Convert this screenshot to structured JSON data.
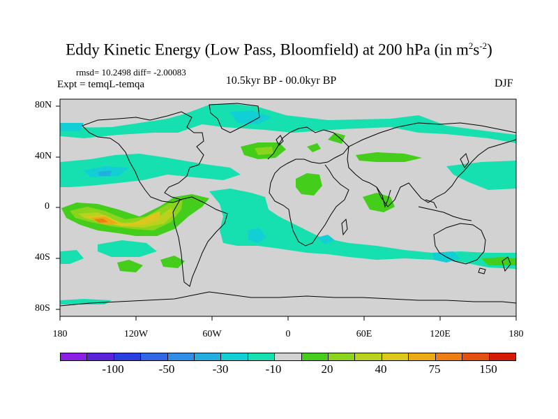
{
  "title": {
    "main": "Eddy Kinetic Energy (Low Pass, Bloomfield) at 200 hPa (in m",
    "sup1": "2",
    "mid": "s",
    "sup2": "-2",
    "end": ")"
  },
  "stats": "rmsd= 10.2498 diff= -2.00083",
  "experiment": "Expt = temqL-temqa",
  "period": "10.5kyr BP - 00.0kyr BP",
  "season": "DJF",
  "lat_labels": [
    "80N",
    "40N",
    "0",
    "40S",
    "80S"
  ],
  "lon_labels": [
    "180",
    "120W",
    "60W",
    "0",
    "60E",
    "120E",
    "180"
  ],
  "colorbar": {
    "colors": [
      "#8c1fe6",
      "#5a23d9",
      "#2a3ee0",
      "#2f66e6",
      "#2f8fe8",
      "#22afe0",
      "#12cfd6",
      "#16e0b0",
      "#d2d2d2",
      "#44cd1a",
      "#8ad41e",
      "#b8d21e",
      "#dcc81c",
      "#eaaa16",
      "#ee7e14",
      "#e35010",
      "#d51a08"
    ],
    "labels": [
      "-100",
      "-50",
      "-30",
      "-10",
      "20",
      "40",
      "75",
      "150"
    ]
  },
  "colors": {
    "land_ocean_background": "#d2d2d2",
    "coastline": "#000000"
  }
}
